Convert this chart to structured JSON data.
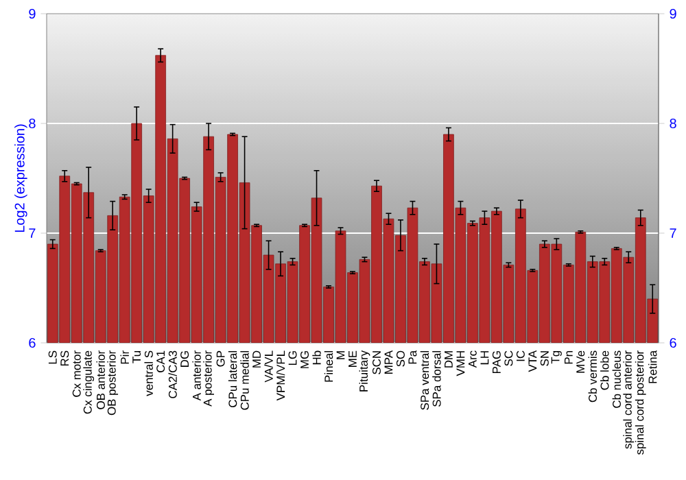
{
  "chart_data": {
    "type": "bar",
    "ylabel": "Log2 (expression)",
    "categories": [
      "LS",
      "RS",
      "Cx motor",
      "Cx cingulate",
      "OB anterior",
      "OB posterior",
      "Pir",
      "Tu",
      "ventral S",
      "CA1",
      "CA2/CA3",
      "DG",
      "A anterior",
      "A posterior",
      "GP",
      "CPu lateral",
      "CPu medial",
      "MD",
      "VA/VL",
      "VPM/VPL",
      "LG",
      "MG",
      "Hb",
      "Pineal",
      "M",
      "ME",
      "Pituitary",
      "SCN",
      "MPA",
      "SO",
      "Pa",
      "SPa ventral",
      "SPa dorsal",
      "DM",
      "VMH",
      "Arc",
      "LH",
      "PAG",
      "SC",
      "IC",
      "VTA",
      "SN",
      "Tg",
      "Pn",
      "MVe",
      "Cb vermis",
      "Cb lobe",
      "Cb nucleus",
      "spinal cord anterior",
      "spinal cord posterior",
      "Retina"
    ],
    "values": [
      6.9,
      7.52,
      7.45,
      7.37,
      6.84,
      7.16,
      7.33,
      8.0,
      7.34,
      8.62,
      7.86,
      7.5,
      7.24,
      7.88,
      7.51,
      7.9,
      7.46,
      7.07,
      6.8,
      6.72,
      6.74,
      7.07,
      7.32,
      6.51,
      7.02,
      6.64,
      6.76,
      7.43,
      7.13,
      6.98,
      7.23,
      6.74,
      6.72,
      7.9,
      7.23,
      7.09,
      7.14,
      7.2,
      6.71,
      7.22,
      6.66,
      6.9,
      6.9,
      6.71,
      7.01,
      6.74,
      6.74,
      6.86,
      6.78,
      7.14,
      6.4
    ],
    "errors": [
      0.04,
      0.05,
      0.01,
      0.23,
      0.01,
      0.13,
      0.02,
      0.15,
      0.06,
      0.06,
      0.13,
      0.01,
      0.04,
      0.12,
      0.04,
      0.01,
      0.42,
      0.01,
      0.13,
      0.11,
      0.03,
      0.01,
      0.25,
      0.01,
      0.03,
      0.01,
      0.02,
      0.05,
      0.05,
      0.14,
      0.06,
      0.03,
      0.18,
      0.06,
      0.06,
      0.02,
      0.06,
      0.03,
      0.02,
      0.08,
      0.01,
      0.03,
      0.05,
      0.01,
      0.01,
      0.05,
      0.03,
      0.01,
      0.05,
      0.07,
      0.13
    ],
    "color": "#b52b2b",
    "ylim": [
      6,
      9
    ],
    "yticks": [
      6,
      7,
      8,
      9
    ],
    "y2lim": [
      6,
      9
    ],
    "y2ticks": [
      6,
      7,
      8,
      9
    ],
    "grid": "y"
  }
}
